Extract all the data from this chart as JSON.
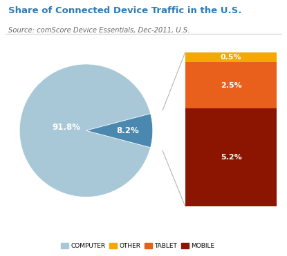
{
  "title": "Share of Connected Device Traffic in the U.S.",
  "subtitle": "Source: comScore Device Essentials, Dec-2011, U.S.",
  "title_color": "#2E7BB5",
  "subtitle_color": "#666666",
  "pie_values": [
    91.8,
    8.2
  ],
  "pie_colors": [
    "#A8C8D8",
    "#4A88B0"
  ],
  "pie_labels": [
    "91.8%",
    "8.2%"
  ],
  "pie_label_color": "white",
  "bar_values": [
    5.2,
    2.5,
    0.5
  ],
  "bar_colors": [
    "#8B1500",
    "#E8601C",
    "#F5A800"
  ],
  "bar_labels": [
    "5.2%",
    "2.5%",
    "0.5%"
  ],
  "legend_labels": [
    "COMPUTER",
    "OTHER",
    "TABLET",
    "MOBILE"
  ],
  "legend_colors": [
    "#A8C8D8",
    "#F5A800",
    "#E8601C",
    "#8B1500"
  ],
  "background_color": "#FFFFFF",
  "line_color": "#AAAAAA",
  "separator_color": "#CCCCCC"
}
